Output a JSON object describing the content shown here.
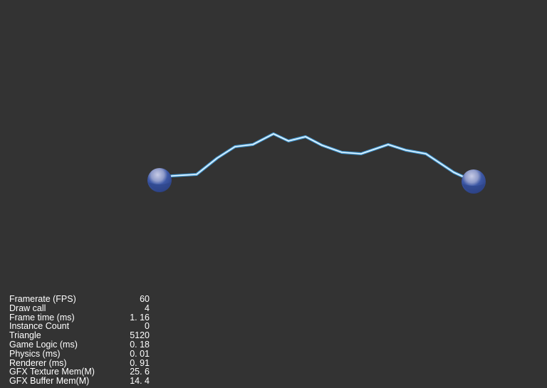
{
  "scene": {
    "background_color": "#333333",
    "rope_color": "#bfe6ff",
    "rope_glow_color": "#4aa8e8",
    "ball_color": "#3d58a6",
    "ball_highlight_color": "#c7cbe6"
  },
  "stats": [
    {
      "label": "Framerate (FPS)",
      "value": "60"
    },
    {
      "label": "Draw call",
      "value": "4"
    },
    {
      "label": "Frame time (ms)",
      "value": "1. 16"
    },
    {
      "label": "Instance Count",
      "value": "0"
    },
    {
      "label": "Triangle",
      "value": "5120"
    },
    {
      "label": "Game Logic (ms)",
      "value": "0. 18"
    },
    {
      "label": "Physics (ms)",
      "value": "0. 01"
    },
    {
      "label": "Renderer (ms)",
      "value": "0. 91"
    },
    {
      "label": "GFX Texture Mem(M)",
      "value": "25. 6"
    },
    {
      "label": "GFX Buffer Mem(M)",
      "value": "14. 4"
    }
  ]
}
